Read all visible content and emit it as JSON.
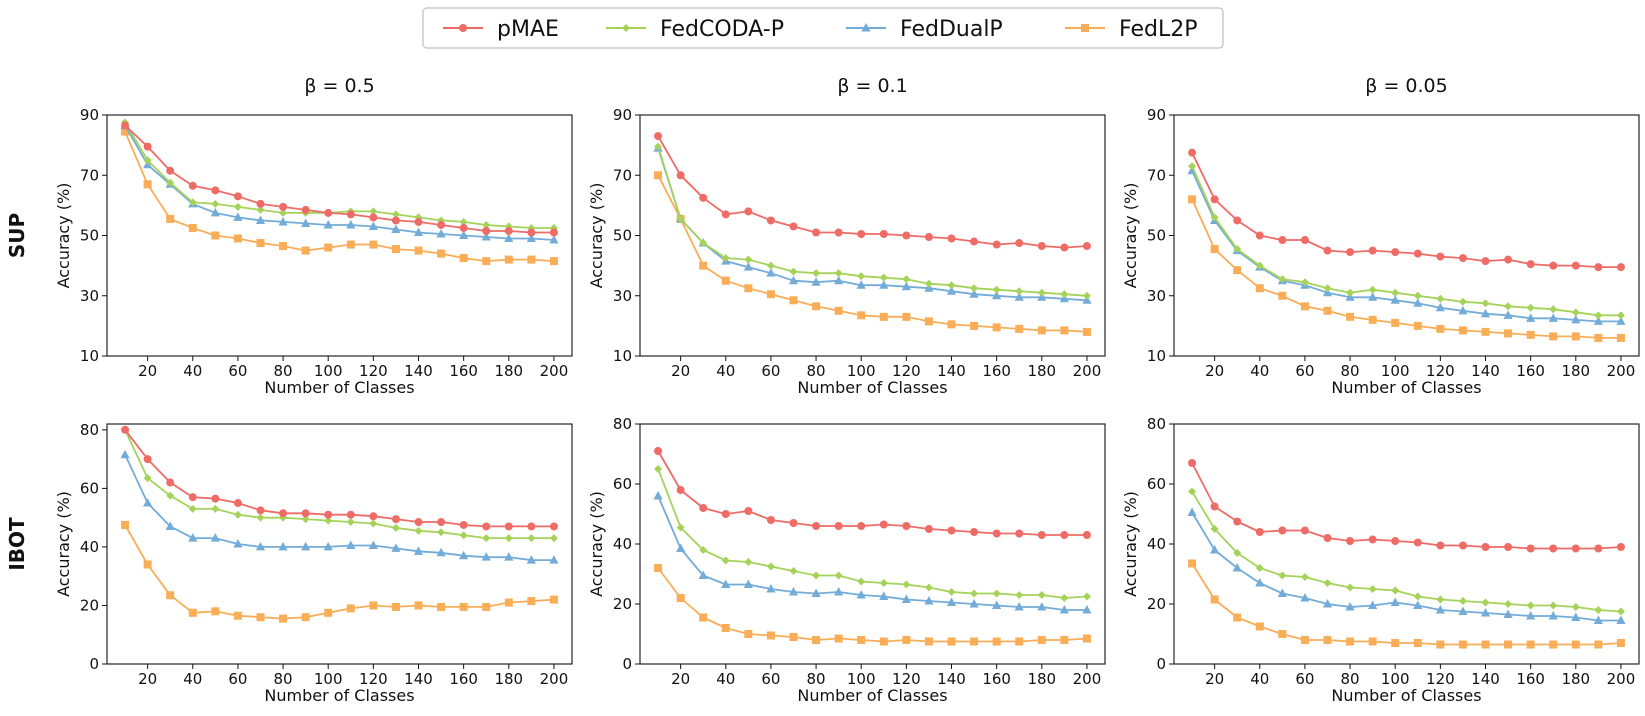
{
  "chart_data": {
    "type": "line",
    "legend": {
      "placement": "top-center",
      "entries": [
        {
          "name": "pMAE",
          "color": "#ee6b66",
          "marker": "circle"
        },
        {
          "name": "FedCODA-P",
          "color": "#a5d35a",
          "marker": "diamond"
        },
        {
          "name": "FedDualP",
          "color": "#73acd8",
          "marker": "triangle"
        },
        {
          "name": "FedL2P",
          "color": "#f9ad57",
          "marker": "square"
        }
      ]
    },
    "column_titles": [
      "β = 0.5",
      "β = 0.1",
      "β = 0.05"
    ],
    "row_labels": [
      "SUP",
      "IBOT"
    ],
    "x": [
      10,
      20,
      30,
      40,
      50,
      60,
      70,
      80,
      90,
      100,
      110,
      120,
      130,
      140,
      150,
      160,
      170,
      180,
      190,
      200
    ],
    "xticks": [
      20,
      40,
      60,
      80,
      100,
      120,
      140,
      160,
      180,
      200
    ],
    "xlim": [
      2,
      208
    ],
    "xlabel": "Number of Classes",
    "ylabel": "Accuracy (%)",
    "panels": [
      {
        "row": 0,
        "col": 0,
        "ylim": [
          10,
          90
        ],
        "yticks": [
          10,
          30,
          50,
          70,
          90
        ],
        "series": [
          {
            "name": "pMAE",
            "values": [
              86.5,
              79.5,
              71.5,
              66.5,
              65,
              63,
              60.5,
              59.5,
              58.5,
              57.5,
              57,
              56,
              55,
              54.5,
              53.5,
              52.5,
              51.5,
              51.5,
              51,
              51
            ]
          },
          {
            "name": "FedCODA-P",
            "values": [
              87.5,
              75,
              67.5,
              61,
              60.5,
              59.5,
              58.5,
              57.5,
              57.5,
              57.5,
              58,
              58,
              57,
              56,
              55,
              54.5,
              53.5,
              53,
              52.5,
              52.5
            ]
          },
          {
            "name": "FedDualP",
            "values": [
              86.5,
              73.5,
              67,
              60.5,
              57.5,
              56,
              55,
              54.5,
              54,
              53.5,
              53.5,
              53,
              52,
              51,
              50.5,
              50,
              49.5,
              49,
              49,
              48.5
            ]
          },
          {
            "name": "FedL2P",
            "values": [
              84.5,
              67,
              55.5,
              52.5,
              50,
              49,
              47.5,
              46.5,
              45,
              46,
              47,
              47,
              45.5,
              45,
              44,
              42.5,
              41.5,
              42,
              42,
              41.5
            ]
          }
        ]
      },
      {
        "row": 0,
        "col": 1,
        "ylim": [
          10,
          90
        ],
        "yticks": [
          10,
          30,
          50,
          70,
          90
        ],
        "series": [
          {
            "name": "pMAE",
            "values": [
              83,
              70,
              62.5,
              57,
              58,
              55,
              53,
              51,
              51,
              50.5,
              50.5,
              50,
              49.5,
              49,
              48,
              47,
              47.5,
              46.5,
              46,
              46.5
            ]
          },
          {
            "name": "FedCODA-P",
            "values": [
              79.5,
              55.5,
              47.5,
              42.5,
              42,
              40,
              38,
              37.5,
              37.5,
              36.5,
              36,
              35.5,
              34,
              33.5,
              32.5,
              32,
              31.5,
              31,
              30.5,
              30
            ]
          },
          {
            "name": "FedDualP",
            "values": [
              79,
              55.5,
              47.5,
              41.5,
              39.5,
              37.5,
              35,
              34.5,
              35,
              33.5,
              33.5,
              33,
              32.5,
              31.5,
              30.5,
              30,
              29.5,
              29.5,
              29,
              28.5
            ]
          },
          {
            "name": "FedL2P",
            "values": [
              70,
              55.5,
              40,
              35,
              32.5,
              30.5,
              28.5,
              26.5,
              25,
              23.5,
              23,
              23,
              21.5,
              20.5,
              20,
              19.5,
              19,
              18.5,
              18.5,
              18
            ]
          }
        ]
      },
      {
        "row": 0,
        "col": 2,
        "ylim": [
          10,
          90
        ],
        "yticks": [
          10,
          30,
          50,
          70,
          90
        ],
        "series": [
          {
            "name": "pMAE",
            "values": [
              77.5,
              62,
              55,
              50,
              48.5,
              48.5,
              45,
              44.5,
              45,
              44.5,
              44,
              43,
              42.5,
              41.5,
              42,
              40.5,
              40,
              40,
              39.5,
              39.5
            ]
          },
          {
            "name": "FedCODA-P",
            "values": [
              73,
              56,
              45.5,
              40,
              35.5,
              34.5,
              32.5,
              31,
              32,
              31,
              30,
              29,
              28,
              27.5,
              26.5,
              26,
              25.5,
              24.5,
              23.5,
              23.5
            ]
          },
          {
            "name": "FedDualP",
            "values": [
              71.5,
              55,
              45,
              39.5,
              35,
              33.5,
              31,
              29.5,
              29.5,
              28.5,
              27.5,
              26,
              25,
              24,
              23.5,
              22.5,
              22.5,
              22,
              21.5,
              21.5
            ]
          },
          {
            "name": "FedL2P",
            "values": [
              62,
              45.5,
              38.5,
              32.5,
              30,
              26.5,
              25,
              23,
              22,
              21,
              20,
              19,
              18.5,
              18,
              17.5,
              17,
              16.5,
              16.5,
              16,
              16
            ]
          }
        ]
      },
      {
        "row": 1,
        "col": 0,
        "ylim": [
          0,
          82
        ],
        "yticks": [
          0,
          20,
          40,
          60,
          80
        ],
        "series": [
          {
            "name": "pMAE",
            "values": [
              80,
              70,
              62,
              57,
              56.5,
              55,
              52.5,
              51.5,
              51.5,
              51,
              51,
              50.5,
              49.5,
              48.5,
              48.5,
              47.5,
              47,
              47,
              47,
              47
            ]
          },
          {
            "name": "FedCODA-P",
            "values": [
              80,
              63.5,
              57.5,
              53,
              53,
              51,
              50,
              50,
              49.5,
              49,
              48.5,
              48,
              46.5,
              45.5,
              45,
              44,
              43,
              43,
              43,
              43
            ]
          },
          {
            "name": "FedDualP",
            "values": [
              71.5,
              55,
              47,
              43,
              43,
              41,
              40,
              40,
              40,
              40,
              40.5,
              40.5,
              39.5,
              38.5,
              38,
              37,
              36.5,
              36.5,
              35.5,
              35.5
            ]
          },
          {
            "name": "FedL2P",
            "values": [
              47.5,
              34,
              23.5,
              17.5,
              18,
              16.5,
              16,
              15.5,
              16,
              17.5,
              19,
              20,
              19.5,
              20,
              19.5,
              19.5,
              19.5,
              21,
              21.5,
              22
            ]
          }
        ]
      },
      {
        "row": 1,
        "col": 1,
        "ylim": [
          0,
          80
        ],
        "yticks": [
          0,
          20,
          40,
          60,
          80
        ],
        "series": [
          {
            "name": "pMAE",
            "values": [
              71,
              58,
              52,
              50,
              51,
              48,
              47,
              46,
              46,
              46,
              46.5,
              46,
              45,
              44.5,
              44,
              43.5,
              43.5,
              43,
              43,
              43
            ]
          },
          {
            "name": "FedCODA-P",
            "values": [
              65,
              45.5,
              38,
              34.5,
              34,
              32.5,
              31,
              29.5,
              29.5,
              27.5,
              27,
              26.5,
              25.5,
              24,
              23.5,
              23.5,
              23,
              23,
              22,
              22.5
            ]
          },
          {
            "name": "FedDualP",
            "values": [
              56,
              38.5,
              29.5,
              26.5,
              26.5,
              25,
              24,
              23.5,
              24,
              23,
              22.5,
              21.5,
              21,
              20.5,
              20,
              19.5,
              19,
              19,
              18,
              18
            ]
          },
          {
            "name": "FedL2P",
            "values": [
              32,
              22,
              15.5,
              12,
              10,
              9.5,
              9,
              8,
              8.5,
              8,
              7.5,
              8,
              7.5,
              7.5,
              7.5,
              7.5,
              7.5,
              8,
              8,
              8.5
            ]
          }
        ]
      },
      {
        "row": 1,
        "col": 2,
        "ylim": [
          0,
          80
        ],
        "yticks": [
          0,
          20,
          40,
          60,
          80
        ],
        "series": [
          {
            "name": "pMAE",
            "values": [
              67,
              52.5,
              47.5,
              44,
              44.5,
              44.5,
              42,
              41,
              41.5,
              41,
              40.5,
              39.5,
              39.5,
              39,
              39,
              38.5,
              38.5,
              38.5,
              38.5,
              39
            ]
          },
          {
            "name": "FedCODA-P",
            "values": [
              57.5,
              45,
              37,
              32,
              29.5,
              29,
              27,
              25.5,
              25,
              24.5,
              22.5,
              21.5,
              21,
              20.5,
              20,
              19.5,
              19.5,
              19,
              18,
              17.5
            ]
          },
          {
            "name": "FedDualP",
            "values": [
              50.5,
              38,
              32,
              27,
              23.5,
              22,
              20,
              19,
              19.5,
              20.5,
              19.5,
              18,
              17.5,
              17,
              16.5,
              16,
              16,
              15.5,
              14.5,
              14.5
            ]
          },
          {
            "name": "FedL2P",
            "values": [
              33.5,
              21.5,
              15.5,
              12.5,
              10,
              8,
              8,
              7.5,
              7.5,
              7,
              7,
              6.5,
              6.5,
              6.5,
              6.5,
              6.5,
              6.5,
              6.5,
              6.5,
              7
            ]
          }
        ]
      }
    ]
  }
}
